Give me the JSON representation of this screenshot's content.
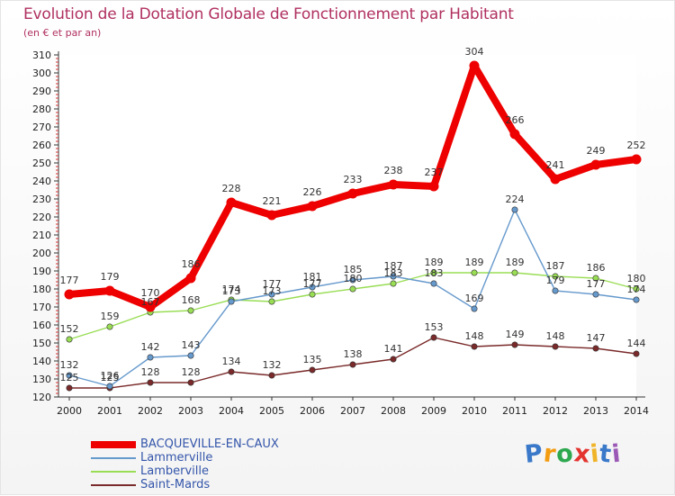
{
  "chart_data": {
    "type": "line",
    "title": "Evolution de la Dotation Globale de Fonctionnement par Habitant",
    "subtitle": "(en € et par an)",
    "xlabel": "",
    "ylabel": "",
    "x": [
      "2000",
      "2001",
      "2002",
      "2003",
      "2004",
      "2005",
      "2006",
      "2007",
      "2008",
      "2009",
      "2010",
      "2011",
      "2012",
      "2013",
      "2014"
    ],
    "ylim": [
      120,
      310
    ],
    "yticks": [
      120,
      130,
      140,
      150,
      160,
      170,
      180,
      190,
      200,
      210,
      220,
      230,
      240,
      250,
      260,
      270,
      280,
      290,
      300,
      310
    ],
    "grid": false,
    "legend_position": "bottom-left",
    "series": [
      {
        "name": "BACQUEVILLE-EN-CAUX",
        "color": "#ee0000",
        "values": [
          177,
          179,
          170,
          186,
          228,
          221,
          226,
          233,
          238,
          237,
          304,
          266,
          241,
          249,
          252
        ]
      },
      {
        "name": "Lammerville",
        "color": "#6699cc",
        "values": [
          132,
          126,
          142,
          143,
          173,
          177,
          181,
          185,
          187,
          183,
          169,
          224,
          179,
          177,
          174
        ]
      },
      {
        "name": "Lamberville",
        "color": "#99dd55",
        "values": [
          152,
          159,
          167,
          168,
          174,
          173,
          177,
          180,
          183,
          189,
          189,
          189,
          187,
          186,
          180
        ]
      },
      {
        "name": "Saint-Mards",
        "color": "#7a2a2a",
        "values": [
          125,
          125,
          128,
          128,
          134,
          132,
          135,
          138,
          141,
          153,
          148,
          149,
          148,
          147,
          144
        ]
      }
    ]
  },
  "brand": {
    "logo_letters": [
      "P",
      "r",
      "o",
      "x",
      "i",
      "t",
      "i"
    ],
    "logo_colors": [
      "#3a78c9",
      "#f39c12",
      "#2ea84f",
      "#e3342f",
      "#f0b429",
      "#3a78c9",
      "#9b59b6"
    ]
  }
}
